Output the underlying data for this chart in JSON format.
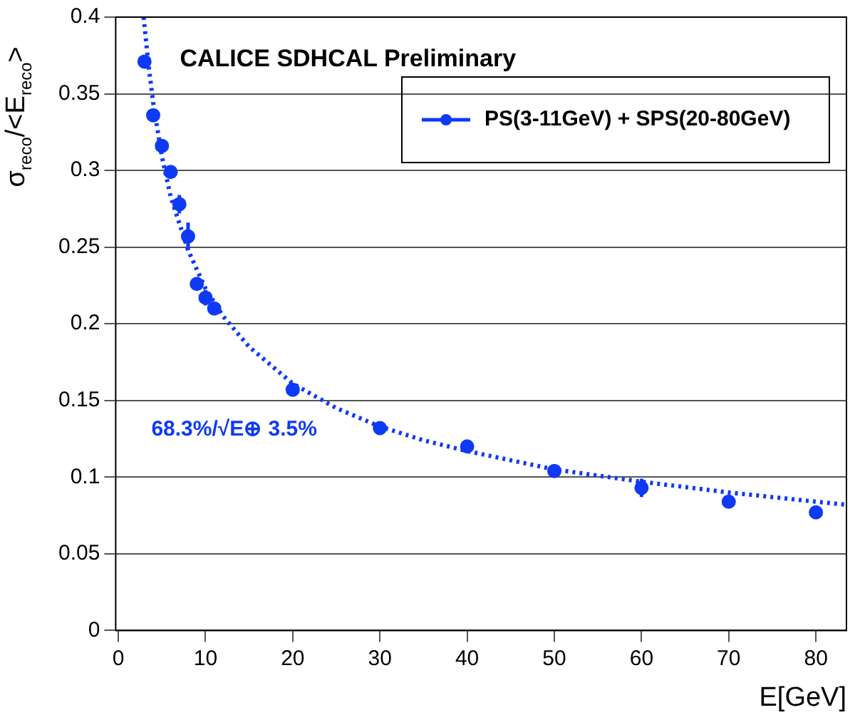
{
  "chart_data": {
    "type": "scatter",
    "xlabel": "E[GeV]",
    "ylabel": "σ$_{reco}$/<E$_{reco}$>",
    "annotations": [
      "CALICE SDHCAL Preliminary",
      "68.3%/√E⊕ 3.5%"
    ],
    "x": [
      3,
      4,
      5,
      6,
      7,
      8,
      9,
      10,
      11,
      20,
      30,
      40,
      50,
      60,
      70,
      80
    ],
    "series": [
      {
        "name": "PS(3-11GeV) + SPS(20-80GeV)",
        "color": "#0f3af5",
        "values": [
          0.371,
          0.336,
          0.316,
          0.299,
          0.278,
          0.257,
          0.226,
          0.217,
          0.21,
          0.157,
          0.132,
          0.12,
          0.104,
          0.093,
          0.084,
          0.077
        ],
        "errors": [
          0.004,
          0.004,
          0.004,
          0.004,
          0.006,
          0.009,
          0.004,
          0.005,
          0.003,
          0.002,
          0.002,
          0.002,
          0.002,
          0.006,
          0.004,
          0.004
        ],
        "marker": "circle"
      },
      {
        "type": "line",
        "color": "#0f3af5",
        "line_style": "dotted",
        "marker": "none",
        "x": [
          2.9,
          3.5,
          4,
          5,
          6,
          8,
          10,
          12,
          15,
          20,
          25,
          30,
          35,
          40,
          50,
          60,
          70,
          80,
          83.5
        ],
        "values": [
          0.4,
          0.367,
          0.344,
          0.309,
          0.283,
          0.248,
          0.223,
          0.205,
          0.185,
          0.161,
          0.145,
          0.133,
          0.124,
          0.117,
          0.105,
          0.097,
          0.09,
          0.084,
          0.082
        ]
      }
    ],
    "xlim": [
      -0.3,
      83.5
    ],
    "xticks": [
      0,
      10,
      20,
      30,
      40,
      50,
      60,
      70,
      80
    ],
    "ylim": [
      0,
      0.4
    ],
    "yticks": [
      0,
      0.05,
      0.1,
      0.15,
      0.2,
      0.25,
      0.3,
      0.35,
      0.4
    ],
    "grid": "y",
    "legend": "top right"
  }
}
